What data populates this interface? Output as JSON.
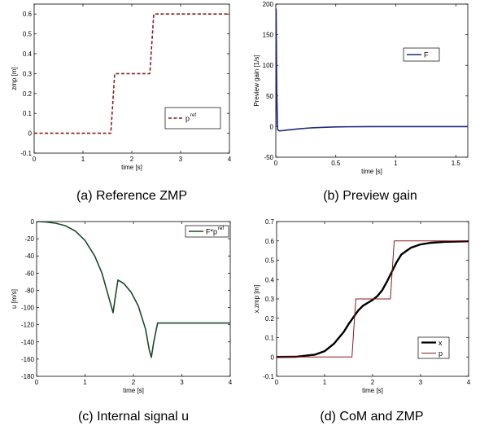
{
  "chart_data": [
    {
      "type": "line",
      "caption": "(a) Reference ZMP",
      "xlabel": "time [s]",
      "ylabel": "zmp [m]",
      "xlim": [
        0,
        4
      ],
      "ylim": [
        -0.1,
        0.65
      ],
      "xticks": [
        "0",
        "1",
        "2",
        "3",
        "4"
      ],
      "yticks": [
        "-0.1",
        "0",
        "0.1",
        "0.2",
        "0.3",
        "0.4",
        "0.5",
        "0.6"
      ],
      "legend": {
        "position": "right-middle",
        "entries": [
          {
            "label": "p",
            "sup": "ref"
          }
        ]
      },
      "series": [
        {
          "color": "#8b1a1a",
          "dash": true,
          "x": [
            0,
            1.57,
            1.65,
            2.37,
            2.45,
            4
          ],
          "y": [
            0,
            0,
            0.3,
            0.3,
            0.6,
            0.6
          ]
        }
      ]
    },
    {
      "type": "line",
      "caption": "(b) Preview gain",
      "xlabel": "time [s]",
      "ylabel": "Preview gain [1/s]",
      "xlim": [
        0,
        1.6
      ],
      "ylim": [
        -50,
        200
      ],
      "xticks": [
        "0",
        "0.5",
        "1",
        "1.5"
      ],
      "yticks": [
        "-50",
        "0",
        "50",
        "100",
        "150",
        "200"
      ],
      "legend": {
        "position": "top-right",
        "entries": [
          {
            "label": "F",
            "sup": ""
          }
        ]
      },
      "series": [
        {
          "color": "#1f2a80",
          "dash": false,
          "x": [
            0,
            0.003,
            0.008,
            0.015,
            0.03,
            0.06,
            0.1,
            0.15,
            0.2,
            0.3,
            0.4,
            0.5,
            0.6,
            0.8,
            1.0,
            1.2,
            1.4,
            1.6
          ],
          "y": [
            0,
            192,
            60,
            -5,
            -7,
            -6.5,
            -5.5,
            -4.5,
            -3.5,
            -2,
            -1.2,
            -0.6,
            -0.3,
            0,
            0,
            0,
            0,
            0
          ]
        }
      ]
    },
    {
      "type": "line",
      "caption": "(c) Internal signal u",
      "xlabel": "time [s]",
      "ylabel": "u [m/s]",
      "xlim": [
        0,
        4
      ],
      "ylim": [
        -180,
        0
      ],
      "xticks": [
        "0",
        "1",
        "2",
        "3",
        "4"
      ],
      "yticks": [
        "-180",
        "-160",
        "-140",
        "-120",
        "-100",
        "-80",
        "-60",
        "-40",
        "-20",
        "0"
      ],
      "legend": {
        "position": "top-right",
        "entries": [
          {
            "label": "F*p",
            "sup": "ref"
          }
        ]
      },
      "series": [
        {
          "color": "#1a4a2a",
          "dash": false,
          "x": [
            0,
            0.2,
            0.4,
            0.6,
            0.8,
            1.0,
            1.2,
            1.35,
            1.45,
            1.55,
            1.58,
            1.62,
            1.68,
            1.8,
            1.95,
            2.1,
            2.25,
            2.33,
            2.37,
            2.42,
            2.5,
            2.7,
            3.0,
            3.5,
            4.0
          ],
          "y": [
            0,
            -0.5,
            -2,
            -5,
            -11,
            -22,
            -40,
            -60,
            -80,
            -100,
            -106,
            -90,
            -68,
            -72,
            -82,
            -98,
            -125,
            -150,
            -158,
            -140,
            -118,
            -118,
            -118,
            -118,
            -118
          ]
        }
      ]
    },
    {
      "type": "line",
      "caption": "(d) CoM and ZMP",
      "xlabel": "time [s]",
      "ylabel": "x,zmp [m]",
      "xlim": [
        0,
        4
      ],
      "ylim": [
        -0.1,
        0.7
      ],
      "xticks": [
        "0",
        "1",
        "2",
        "3",
        "4"
      ],
      "yticks": [
        "-0.1",
        "0",
        "0.1",
        "0.2",
        "0.3",
        "0.4",
        "0.5",
        "0.6",
        "0.7"
      ],
      "legend": {
        "position": "right-bottom",
        "entries": [
          {
            "label": "x",
            "sup": ""
          },
          {
            "label": "p",
            "sup": ""
          }
        ]
      },
      "series": [
        {
          "color": "#000000",
          "dash": false,
          "width": 2.4,
          "x": [
            0,
            0.4,
            0.8,
            1.0,
            1.2,
            1.4,
            1.5,
            1.6,
            1.7,
            1.8,
            1.9,
            2.0,
            2.1,
            2.2,
            2.3,
            2.4,
            2.5,
            2.6,
            2.8,
            3.0,
            3.2,
            3.5,
            4.0
          ],
          "y": [
            0,
            0.001,
            0.012,
            0.03,
            0.07,
            0.13,
            0.17,
            0.205,
            0.24,
            0.265,
            0.28,
            0.295,
            0.315,
            0.345,
            0.39,
            0.44,
            0.49,
            0.53,
            0.565,
            0.582,
            0.59,
            0.595,
            0.598
          ]
        },
        {
          "color": "#8b1a1a",
          "dash": false,
          "width": 1,
          "x": [
            0,
            1.57,
            1.65,
            2.37,
            2.45,
            4
          ],
          "y": [
            0,
            0,
            0.3,
            0.3,
            0.6,
            0.6
          ]
        }
      ]
    }
  ]
}
